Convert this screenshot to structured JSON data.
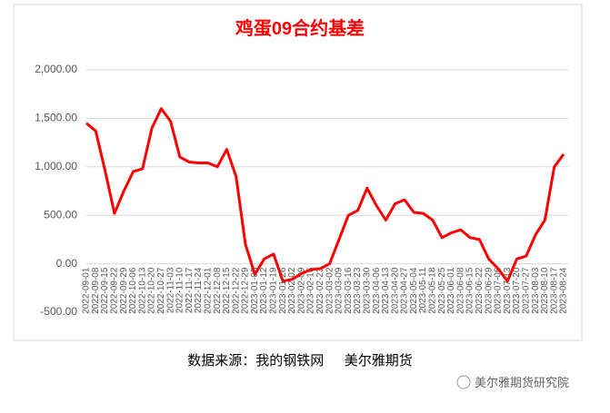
{
  "chart_data": {
    "type": "line",
    "title": "鸡蛋09合约基差",
    "categories": [
      "2022-09-01",
      "2022-09-08",
      "2022-09-15",
      "2022-09-22",
      "2022-09-29",
      "2022-10-06",
      "2022-10-13",
      "2022-10-20",
      "2022-10-27",
      "2022-11-03",
      "2022-11-10",
      "2022-11-17",
      "2022-11-24",
      "2022-12-01",
      "2022-12-08",
      "2022-12-15",
      "2022-12-22",
      "2022-12-29",
      "2023-01-05",
      "2023-01-12",
      "2023-01-19",
      "2023-01-26",
      "2023-02-02",
      "2023-02-09",
      "2023-02-16",
      "2023-02-23",
      "2023-03-02",
      "2023-03-09",
      "2023-03-16",
      "2023-03-23",
      "2023-03-30",
      "2023-04-06",
      "2023-04-13",
      "2023-04-20",
      "2023-04-27",
      "2023-05-04",
      "2023-05-11",
      "2023-05-18",
      "2023-05-25",
      "2023-06-01",
      "2023-06-08",
      "2023-06-15",
      "2023-06-22",
      "2023-06-29",
      "2023-07-06",
      "2023-07-13",
      "2023-07-20",
      "2023-07-27",
      "2023-08-03",
      "2023-08-10",
      "2023-08-17",
      "2023-08-24"
    ],
    "series": [
      {
        "name": "鸡蛋09合约基差",
        "color": "#ff0000",
        "values": [
          1450,
          1370,
          960,
          520,
          750,
          950,
          980,
          1400,
          1600,
          1470,
          1100,
          1050,
          1040,
          1040,
          1000,
          1180,
          900,
          200,
          -110,
          50,
          100,
          -180,
          -160,
          -100,
          -60,
          -50,
          0,
          250,
          500,
          550,
          780,
          600,
          450,
          620,
          660,
          530,
          520,
          450,
          270,
          320,
          350,
          270,
          250,
          50,
          -50,
          -180,
          50,
          80,
          300,
          450,
          1000,
          1130
        ]
      }
    ],
    "ylim": [
      -500,
      2000
    ],
    "yticks": [
      {
        "value": -500,
        "label": "-500.00"
      },
      {
        "value": 0,
        "label": "0.00"
      },
      {
        "value": 500,
        "label": "500.00"
      },
      {
        "value": 1000,
        "label": "1,000.00"
      },
      {
        "value": 1500,
        "label": "1,500.00"
      },
      {
        "value": 2000,
        "label": "2,000.00"
      }
    ],
    "grid": true,
    "source": "数据来源：我的钢铁网      美尔雅期货",
    "watermark": "美尔雅期货研究院"
  }
}
